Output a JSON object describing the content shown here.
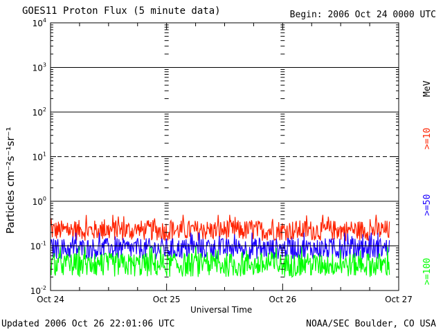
{
  "header": {
    "title": "GOES11 Proton Flux (5 minute data)",
    "begin": "Begin: 2006 Oct 24 0000 UTC"
  },
  "footer": {
    "updated": "Updated 2006 Oct 26 22:01:06 UTC",
    "credit": "NOAA/SEC Boulder, CO USA"
  },
  "chart_data": {
    "type": "line",
    "title": "GOES11 Proton Flux (5 minute data)",
    "xlabel": "Universal Time",
    "ylabel": "Particles cm⁻²s⁻¹sr⁻¹",
    "y_scale": "log",
    "ylim": [
      0.01,
      10000
    ],
    "y_ticks": [
      {
        "value": 0.01,
        "label_base": "10",
        "label_exp": "-2"
      },
      {
        "value": 0.1,
        "label_base": "10",
        "label_exp": "-1"
      },
      {
        "value": 1,
        "label_base": "10",
        "label_exp": "0"
      },
      {
        "value": 10,
        "label_base": "10",
        "label_exp": "1"
      },
      {
        "value": 100,
        "label_base": "10",
        "label_exp": "2"
      },
      {
        "value": 1000,
        "label_base": "10",
        "label_exp": "3"
      },
      {
        "value": 10000,
        "label_base": "10",
        "label_exp": "4"
      }
    ],
    "x_ticks": [
      "Oct 24",
      "Oct 25",
      "Oct 26",
      "Oct 27"
    ],
    "xlim_days": [
      0,
      3
    ],
    "data_end_day": 2.92,
    "threshold_lines": [
      {
        "value": 10,
        "style": "dashed"
      },
      {
        "value": 0.1,
        "style": "solid"
      }
    ],
    "unit_label": "MeV",
    "series": [
      {
        "name": ">=10",
        "color": "#ff2200",
        "typical_range": [
          0.13,
          0.38
        ]
      },
      {
        "name": ">=50",
        "color": "#1a00ff",
        "typical_range": [
          0.05,
          0.15
        ]
      },
      {
        "name": ">=100",
        "color": "#00ff00",
        "typical_range": [
          0.02,
          0.07
        ]
      }
    ]
  }
}
